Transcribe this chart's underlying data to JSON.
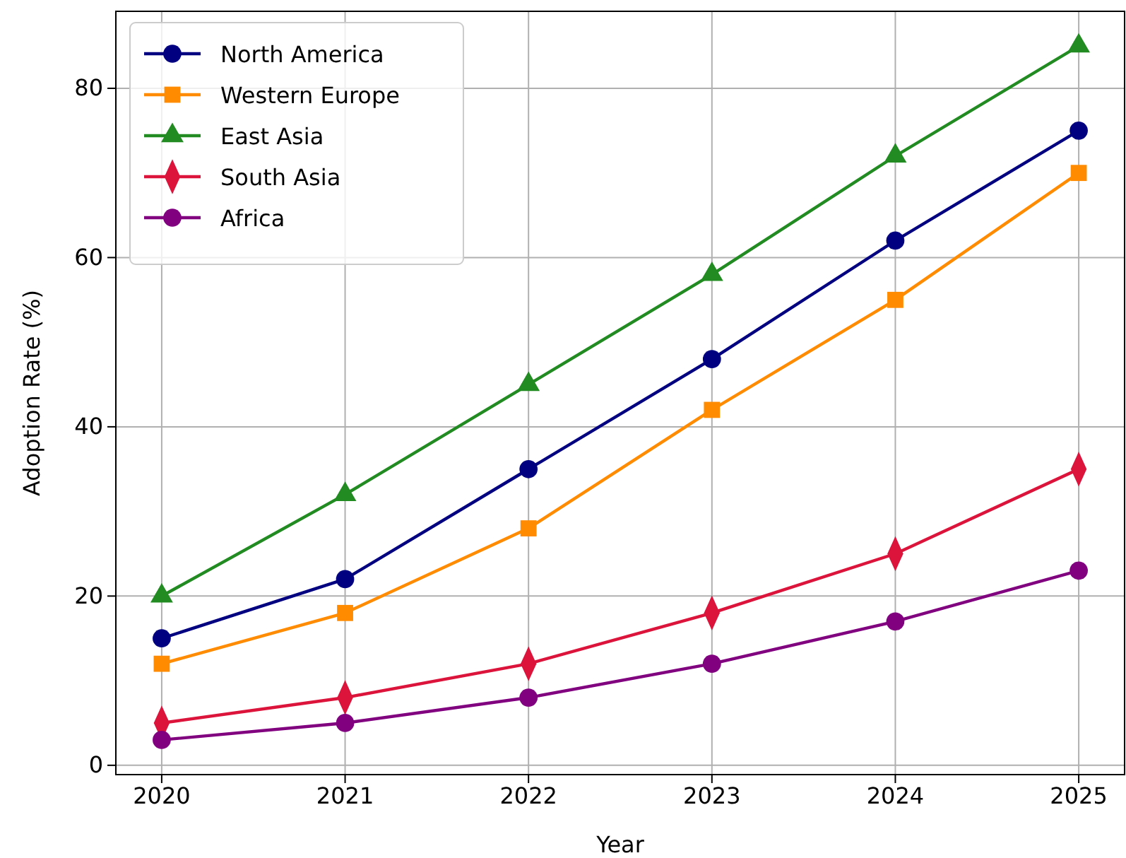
{
  "chart_data": {
    "type": "line",
    "xlabel": "Year",
    "ylabel": "Adoption Rate (%)",
    "x": [
      2020,
      2021,
      2022,
      2023,
      2024,
      2025
    ],
    "xlim": [
      2019.75,
      2025.25
    ],
    "xticks": [
      2020,
      2021,
      2022,
      2023,
      2024,
      2025
    ],
    "ylim": [
      -1.1,
      89.1
    ],
    "yticks": [
      0,
      20,
      40,
      60,
      80
    ],
    "grid": true,
    "legend": "top left",
    "line_style": "solid",
    "series": [
      {
        "name": "North America",
        "color": "#000080",
        "marker": "circle",
        "values": [
          15,
          22,
          35,
          48,
          62,
          75
        ]
      },
      {
        "name": "Western Europe",
        "color": "#ff8c00",
        "marker": "square",
        "values": [
          12,
          18,
          28,
          42,
          55,
          70
        ]
      },
      {
        "name": "East Asia",
        "color": "#228b22",
        "marker": "triangle",
        "values": [
          20,
          32,
          45,
          58,
          72,
          85
        ]
      },
      {
        "name": "South Asia",
        "color": "#dc143c",
        "marker": "diamond",
        "values": [
          5,
          8,
          12,
          18,
          25,
          35
        ]
      },
      {
        "name": "Africa",
        "color": "#800080",
        "marker": "circle",
        "values": [
          3,
          5,
          8,
          12,
          17,
          23
        ]
      }
    ]
  }
}
